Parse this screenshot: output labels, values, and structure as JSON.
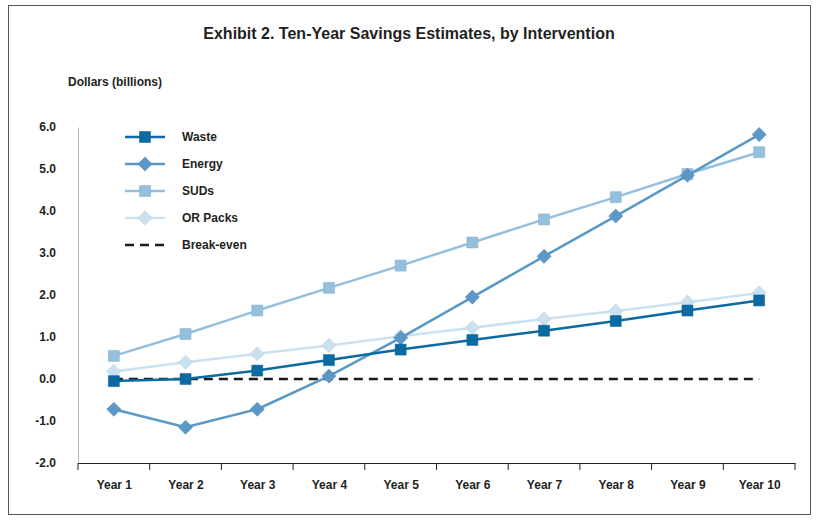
{
  "chart_data": {
    "type": "line",
    "title": "Exhibit 2. Ten-Year Savings Estimates, by Intervention",
    "y_label": "Dollars (billions)",
    "categories": [
      "Year 1",
      "Year 2",
      "Year 3",
      "Year 4",
      "Year 5",
      "Year 6",
      "Year 7",
      "Year 8",
      "Year 9",
      "Year 10"
    ],
    "series": [
      {
        "name": "Waste",
        "color": "#0b6aa2",
        "marker": "square",
        "line_style": "solid",
        "values": [
          -0.05,
          0.0,
          0.2,
          0.45,
          0.7,
          0.93,
          1.15,
          1.38,
          1.63,
          1.87
        ]
      },
      {
        "name": "Energy",
        "color": "#5a98c6",
        "marker": "diamond",
        "line_style": "solid",
        "values": [
          -0.72,
          -1.15,
          -0.72,
          0.07,
          0.98,
          1.95,
          2.92,
          3.88,
          4.85,
          5.82
        ]
      },
      {
        "name": "SUDs",
        "color": "#94c0de",
        "marker": "square",
        "line_style": "solid",
        "values": [
          0.55,
          1.07,
          1.63,
          2.17,
          2.7,
          3.25,
          3.8,
          4.33,
          4.88,
          5.4
        ]
      },
      {
        "name": "OR Packs",
        "color": "#cae1f1",
        "marker": "diamond",
        "line_style": "solid",
        "values": [
          0.18,
          0.4,
          0.6,
          0.8,
          1.02,
          1.22,
          1.43,
          1.62,
          1.83,
          2.05
        ]
      },
      {
        "name": "Break-even",
        "color": "#1a1a1a",
        "marker": "none",
        "line_style": "dashed",
        "values": [
          0,
          0,
          0,
          0,
          0,
          0,
          0,
          0,
          0,
          0
        ]
      }
    ],
    "ylim": [
      -2,
      6
    ],
    "yticks": [
      {
        "value": -2,
        "label": "-2.0"
      },
      {
        "value": -1,
        "label": "-1.0"
      },
      {
        "value": 0,
        "label": "0.0"
      },
      {
        "value": 1,
        "label": "1.0"
      },
      {
        "value": 2,
        "label": "2.0"
      },
      {
        "value": 3,
        "label": "3.0"
      },
      {
        "value": 4,
        "label": "4.0"
      },
      {
        "value": 5,
        "label": "5.0"
      },
      {
        "value": 6,
        "label": "6.0"
      }
    ],
    "grid": false,
    "legend": "top-left"
  }
}
